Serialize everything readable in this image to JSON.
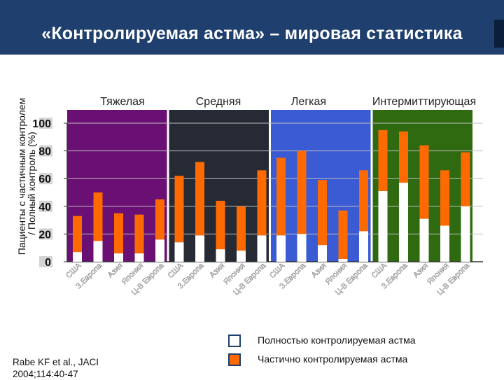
{
  "slide": {
    "title": "«Контролируемая астма» – мировая статистика",
    "footnote_line1": "Rabe KF et al., JACI",
    "footnote_line2": "2004;114:40-47"
  },
  "colors": {
    "title_bar": "#1f3f6e",
    "full_control": "#ffffff",
    "partial_control": "#ff6a00",
    "severe_bg": "#6a0f73",
    "moderate_bg": "#252a34",
    "mild_bg": "#3a5bd3",
    "intermittent_bg": "#2f6a10"
  },
  "chart_data": {
    "type": "bar",
    "stacked": true,
    "ylabel_line1": "Пациенты с частичным контролем",
    "ylabel_line2": "/  Полный контроль  (%)",
    "ylim": [
      0,
      100
    ],
    "yticks": [
      0,
      20,
      40,
      60,
      80,
      100
    ],
    "groups": [
      {
        "name": "Тяжелая",
        "color": "#6a0f73",
        "categories": [
          "США",
          "З.Европа",
          "Азия",
          "Япония",
          "Ц-В Европа"
        ],
        "full": [
          7,
          15,
          6,
          6,
          16
        ],
        "total": [
          33,
          50,
          35,
          34,
          45
        ]
      },
      {
        "name": "Средняя",
        "color": "#252a34",
        "categories": [
          "США",
          "З.Европа",
          "Азия",
          "Япония",
          "Ц-В Европа"
        ],
        "full": [
          14,
          19,
          9,
          8,
          19
        ],
        "total": [
          62,
          72,
          44,
          40,
          66
        ]
      },
      {
        "name": "Легкая",
        "color": "#3a5bd3",
        "categories": [
          "США",
          "З.Европа",
          "Азия",
          "Япония",
          "Ц-В Европа"
        ],
        "full": [
          19,
          20,
          12,
          2,
          22
        ],
        "total": [
          75,
          80,
          59,
          37,
          66
        ]
      },
      {
        "name": "Интермиттирующая",
        "color": "#2f6a10",
        "categories": [
          "США",
          "З.Европа",
          "Азия",
          "Япония",
          "Ц-В Европа"
        ],
        "full": [
          51,
          57,
          31,
          26,
          40
        ],
        "total": [
          95,
          94,
          84,
          66,
          79
        ]
      }
    ],
    "legend": [
      {
        "label": "Полностью контролируемая астма",
        "color": "#ffffff"
      },
      {
        "label": "Частично контролируемая астма",
        "color": "#ff6a00"
      }
    ]
  }
}
